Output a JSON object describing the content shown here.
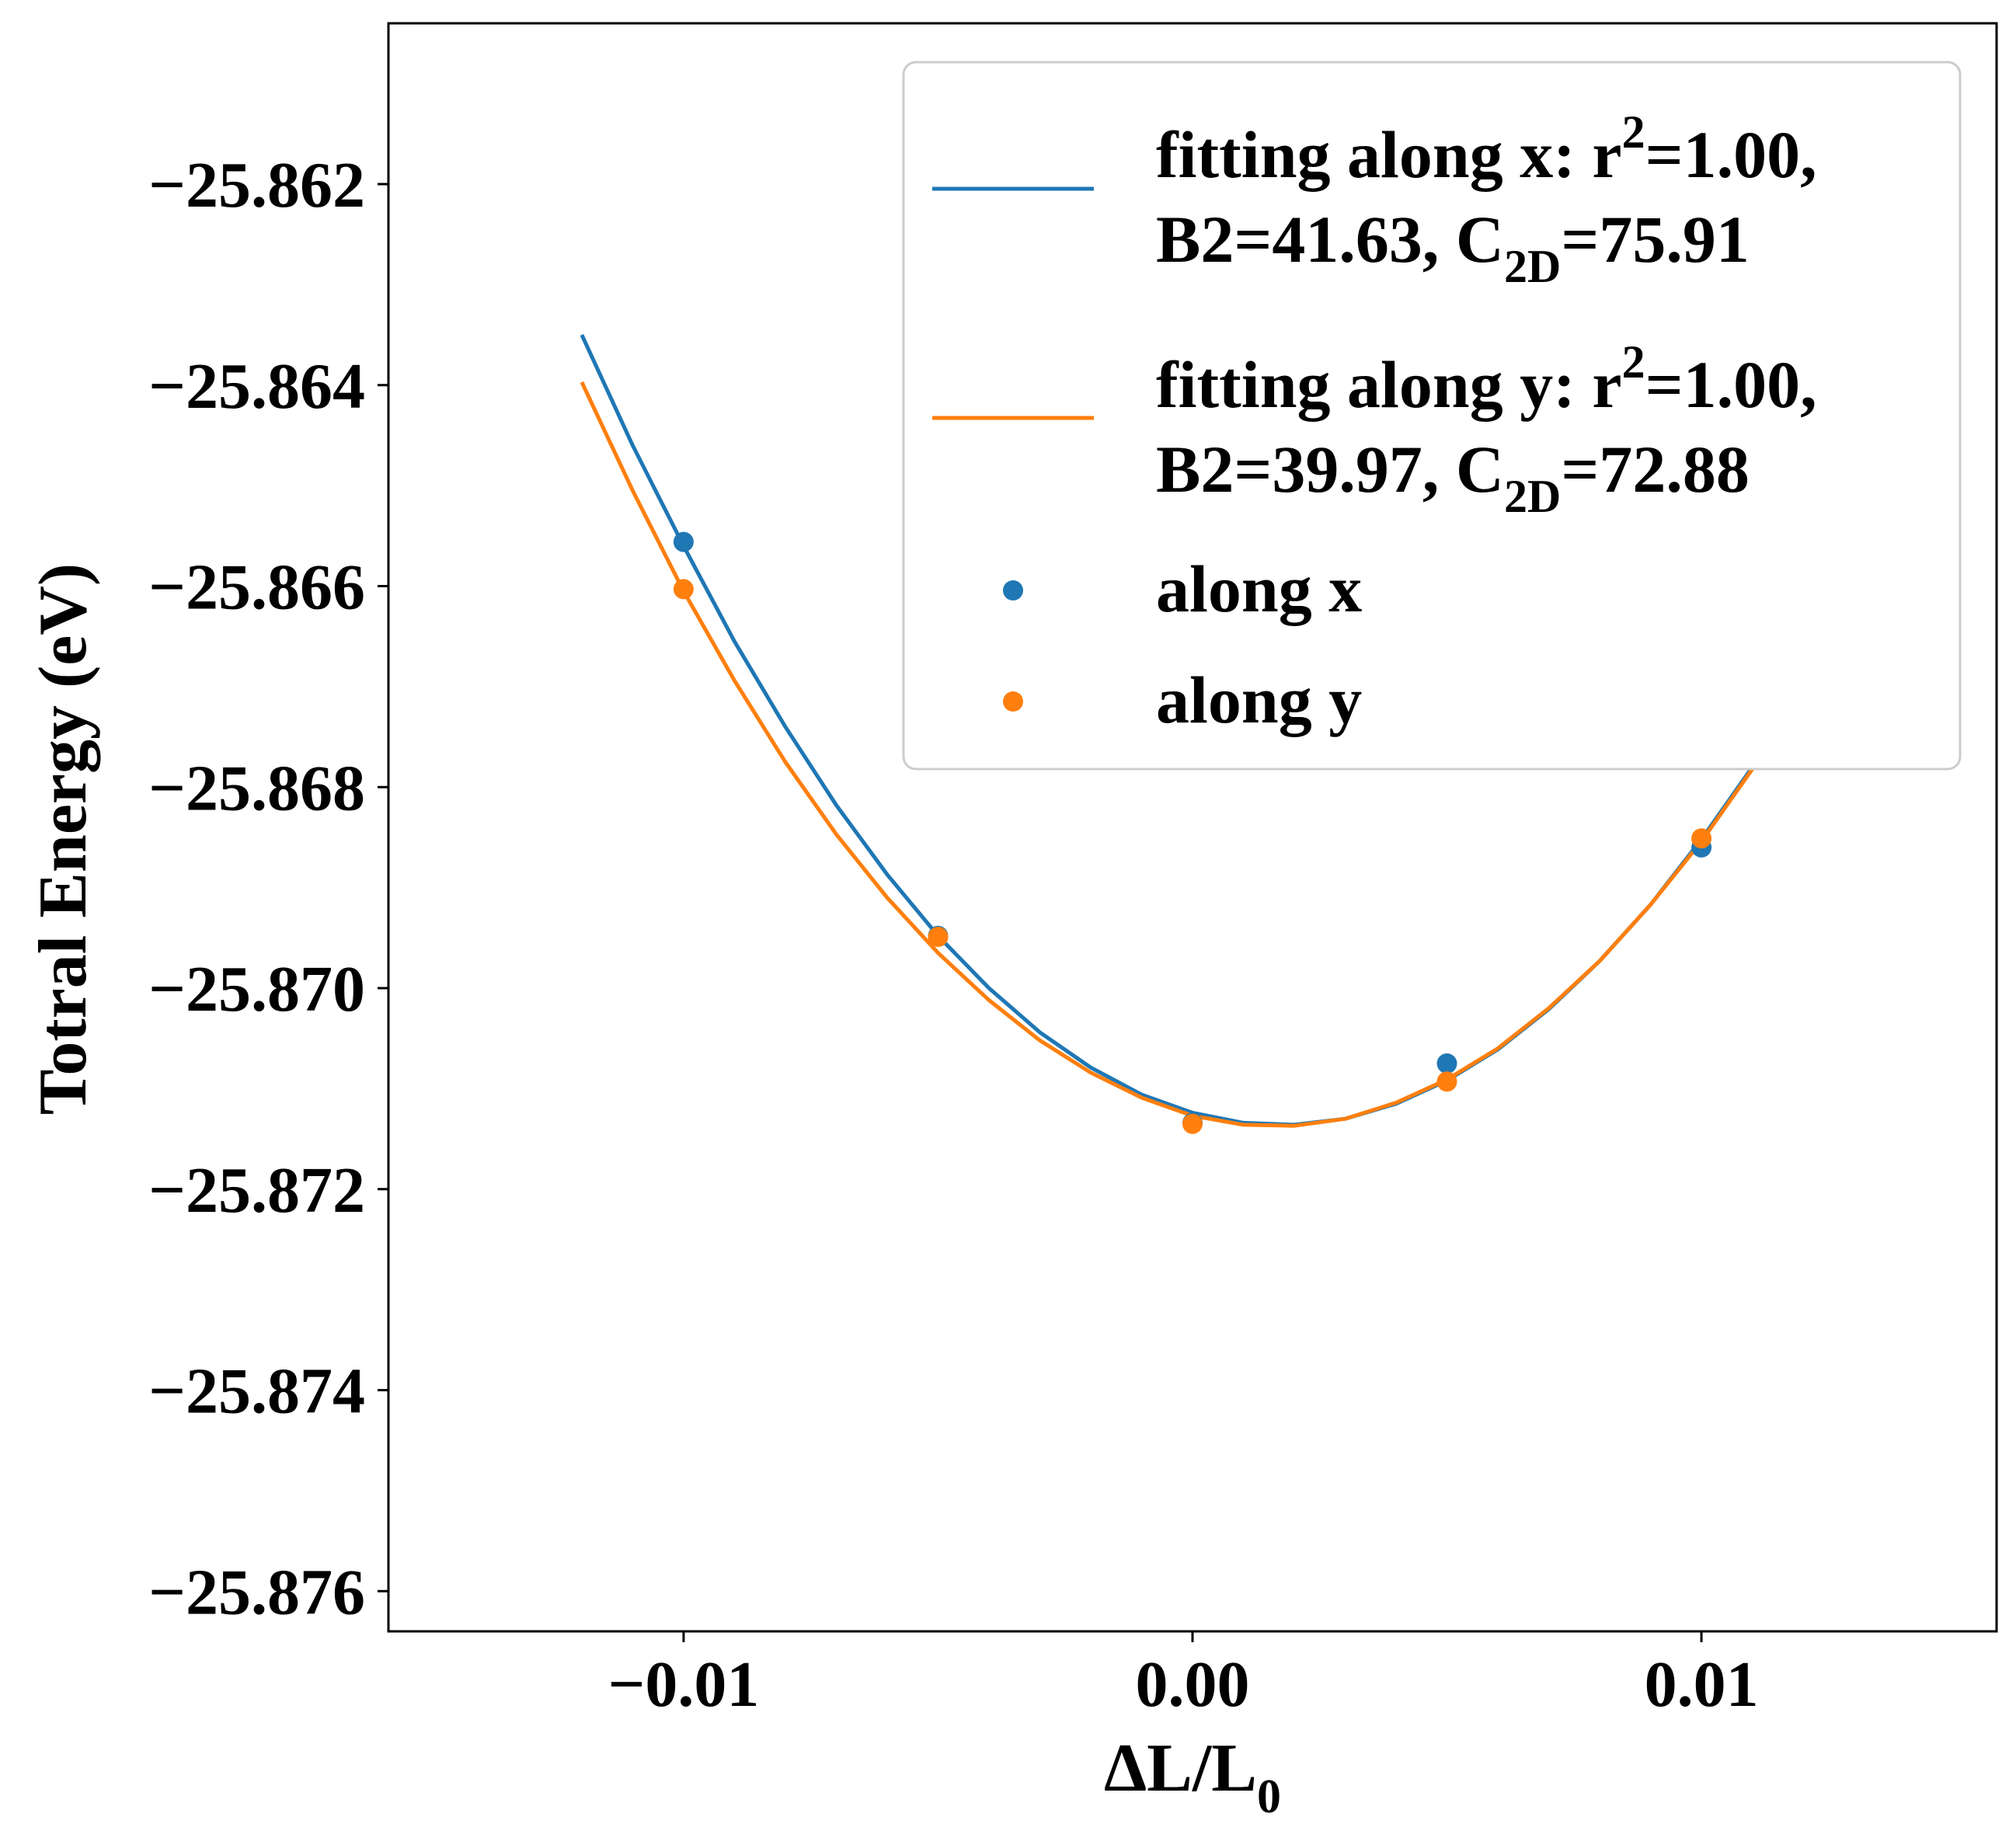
{
  "chart_data": {
    "type": "scatter",
    "xlabel": {
      "main": "ΔL/L",
      "sub": "0"
    },
    "ylabel": "Totral Energy (eV)",
    "xlim": [
      -0.0158,
      0.0158
    ],
    "ylim": [
      -25.8764,
      -25.8604
    ],
    "xticks": [
      {
        "value": -0.01,
        "label": "−0.01"
      },
      {
        "value": 0.0,
        "label": "0.00"
      },
      {
        "value": 0.01,
        "label": "0.01"
      }
    ],
    "yticks": [
      {
        "value": -25.862,
        "label": "−25.862"
      },
      {
        "value": -25.864,
        "label": "−25.864"
      },
      {
        "value": -25.866,
        "label": "−25.866"
      },
      {
        "value": -25.868,
        "label": "−25.868"
      },
      {
        "value": -25.87,
        "label": "−25.870"
      },
      {
        "value": -25.872,
        "label": "−25.872"
      },
      {
        "value": -25.874,
        "label": "−25.874"
      },
      {
        "value": -25.876,
        "label": "−25.876"
      }
    ],
    "grid": false,
    "legend_position": "upper right",
    "fits": [
      {
        "series": "x",
        "color": "#1f77b4",
        "x": [
          -0.012,
          -0.011,
          -0.01,
          -0.009,
          -0.008,
          -0.007,
          -0.006,
          -0.005,
          -0.004,
          -0.003,
          -0.002,
          -0.001,
          0.0,
          0.001,
          0.002,
          0.003,
          0.004,
          0.005,
          0.006,
          0.007,
          0.008,
          0.009,
          0.01,
          0.011
        ],
        "y": [
          -25.8635,
          -25.8646,
          -25.8656,
          -25.86655,
          -25.8674,
          -25.86818,
          -25.86887,
          -25.86948,
          -25.87,
          -25.87044,
          -25.87079,
          -25.87106,
          -25.87124,
          -25.87134,
          -25.87136,
          -25.8713,
          -25.87115,
          -25.87092,
          -25.87061,
          -25.87021,
          -25.86973,
          -25.86917,
          -25.86852,
          -25.8678
        ],
        "legend": {
          "line1": "fitting along x: r",
          "line1_sup": "2",
          "line1_tail": "=1.00,",
          "line2": "B2=41.63, C",
          "line2_sub": "2D",
          "line2_tail": "=75.91"
        }
      },
      {
        "series": "y",
        "color": "#ff7f0e",
        "x": [
          -0.012,
          -0.011,
          -0.01,
          -0.009,
          -0.008,
          -0.007,
          -0.006,
          -0.005,
          -0.004,
          -0.003,
          -0.002,
          -0.001,
          0.0,
          0.001,
          0.002,
          0.003,
          0.004,
          0.005,
          0.006,
          0.007,
          0.008,
          0.009,
          0.01,
          0.011
        ],
        "y": [
          -25.86397,
          -25.86505,
          -25.86605,
          -25.86694,
          -25.86775,
          -25.86847,
          -25.8691,
          -25.86965,
          -25.87012,
          -25.87052,
          -25.87084,
          -25.87109,
          -25.87127,
          -25.87136,
          -25.87137,
          -25.8713,
          -25.87114,
          -25.87091,
          -25.8706,
          -25.8702,
          -25.86973,
          -25.86917,
          -25.86854,
          -25.86782
        ],
        "legend": {
          "line1": "fitting along y: r",
          "line1_sup": "2",
          "line1_tail": "=1.00,",
          "line2": "B2=39.97, C",
          "line2_sub": "2D",
          "line2_tail": "=72.88"
        }
      }
    ],
    "series": [
      {
        "name": "along x",
        "color": "#1f77b4",
        "x": [
          -0.01,
          -0.005,
          0.0,
          0.005,
          0.01
        ],
        "y": [
          -25.86556,
          -25.86948,
          -25.87134,
          -25.87075,
          -25.8686
        ]
      },
      {
        "name": "along y",
        "color": "#ff7f0e",
        "x": [
          -0.01,
          -0.005,
          0.0,
          0.005,
          0.01
        ],
        "y": [
          -25.86603,
          -25.86949,
          -25.87135,
          -25.87093,
          -25.86851
        ]
      }
    ]
  }
}
